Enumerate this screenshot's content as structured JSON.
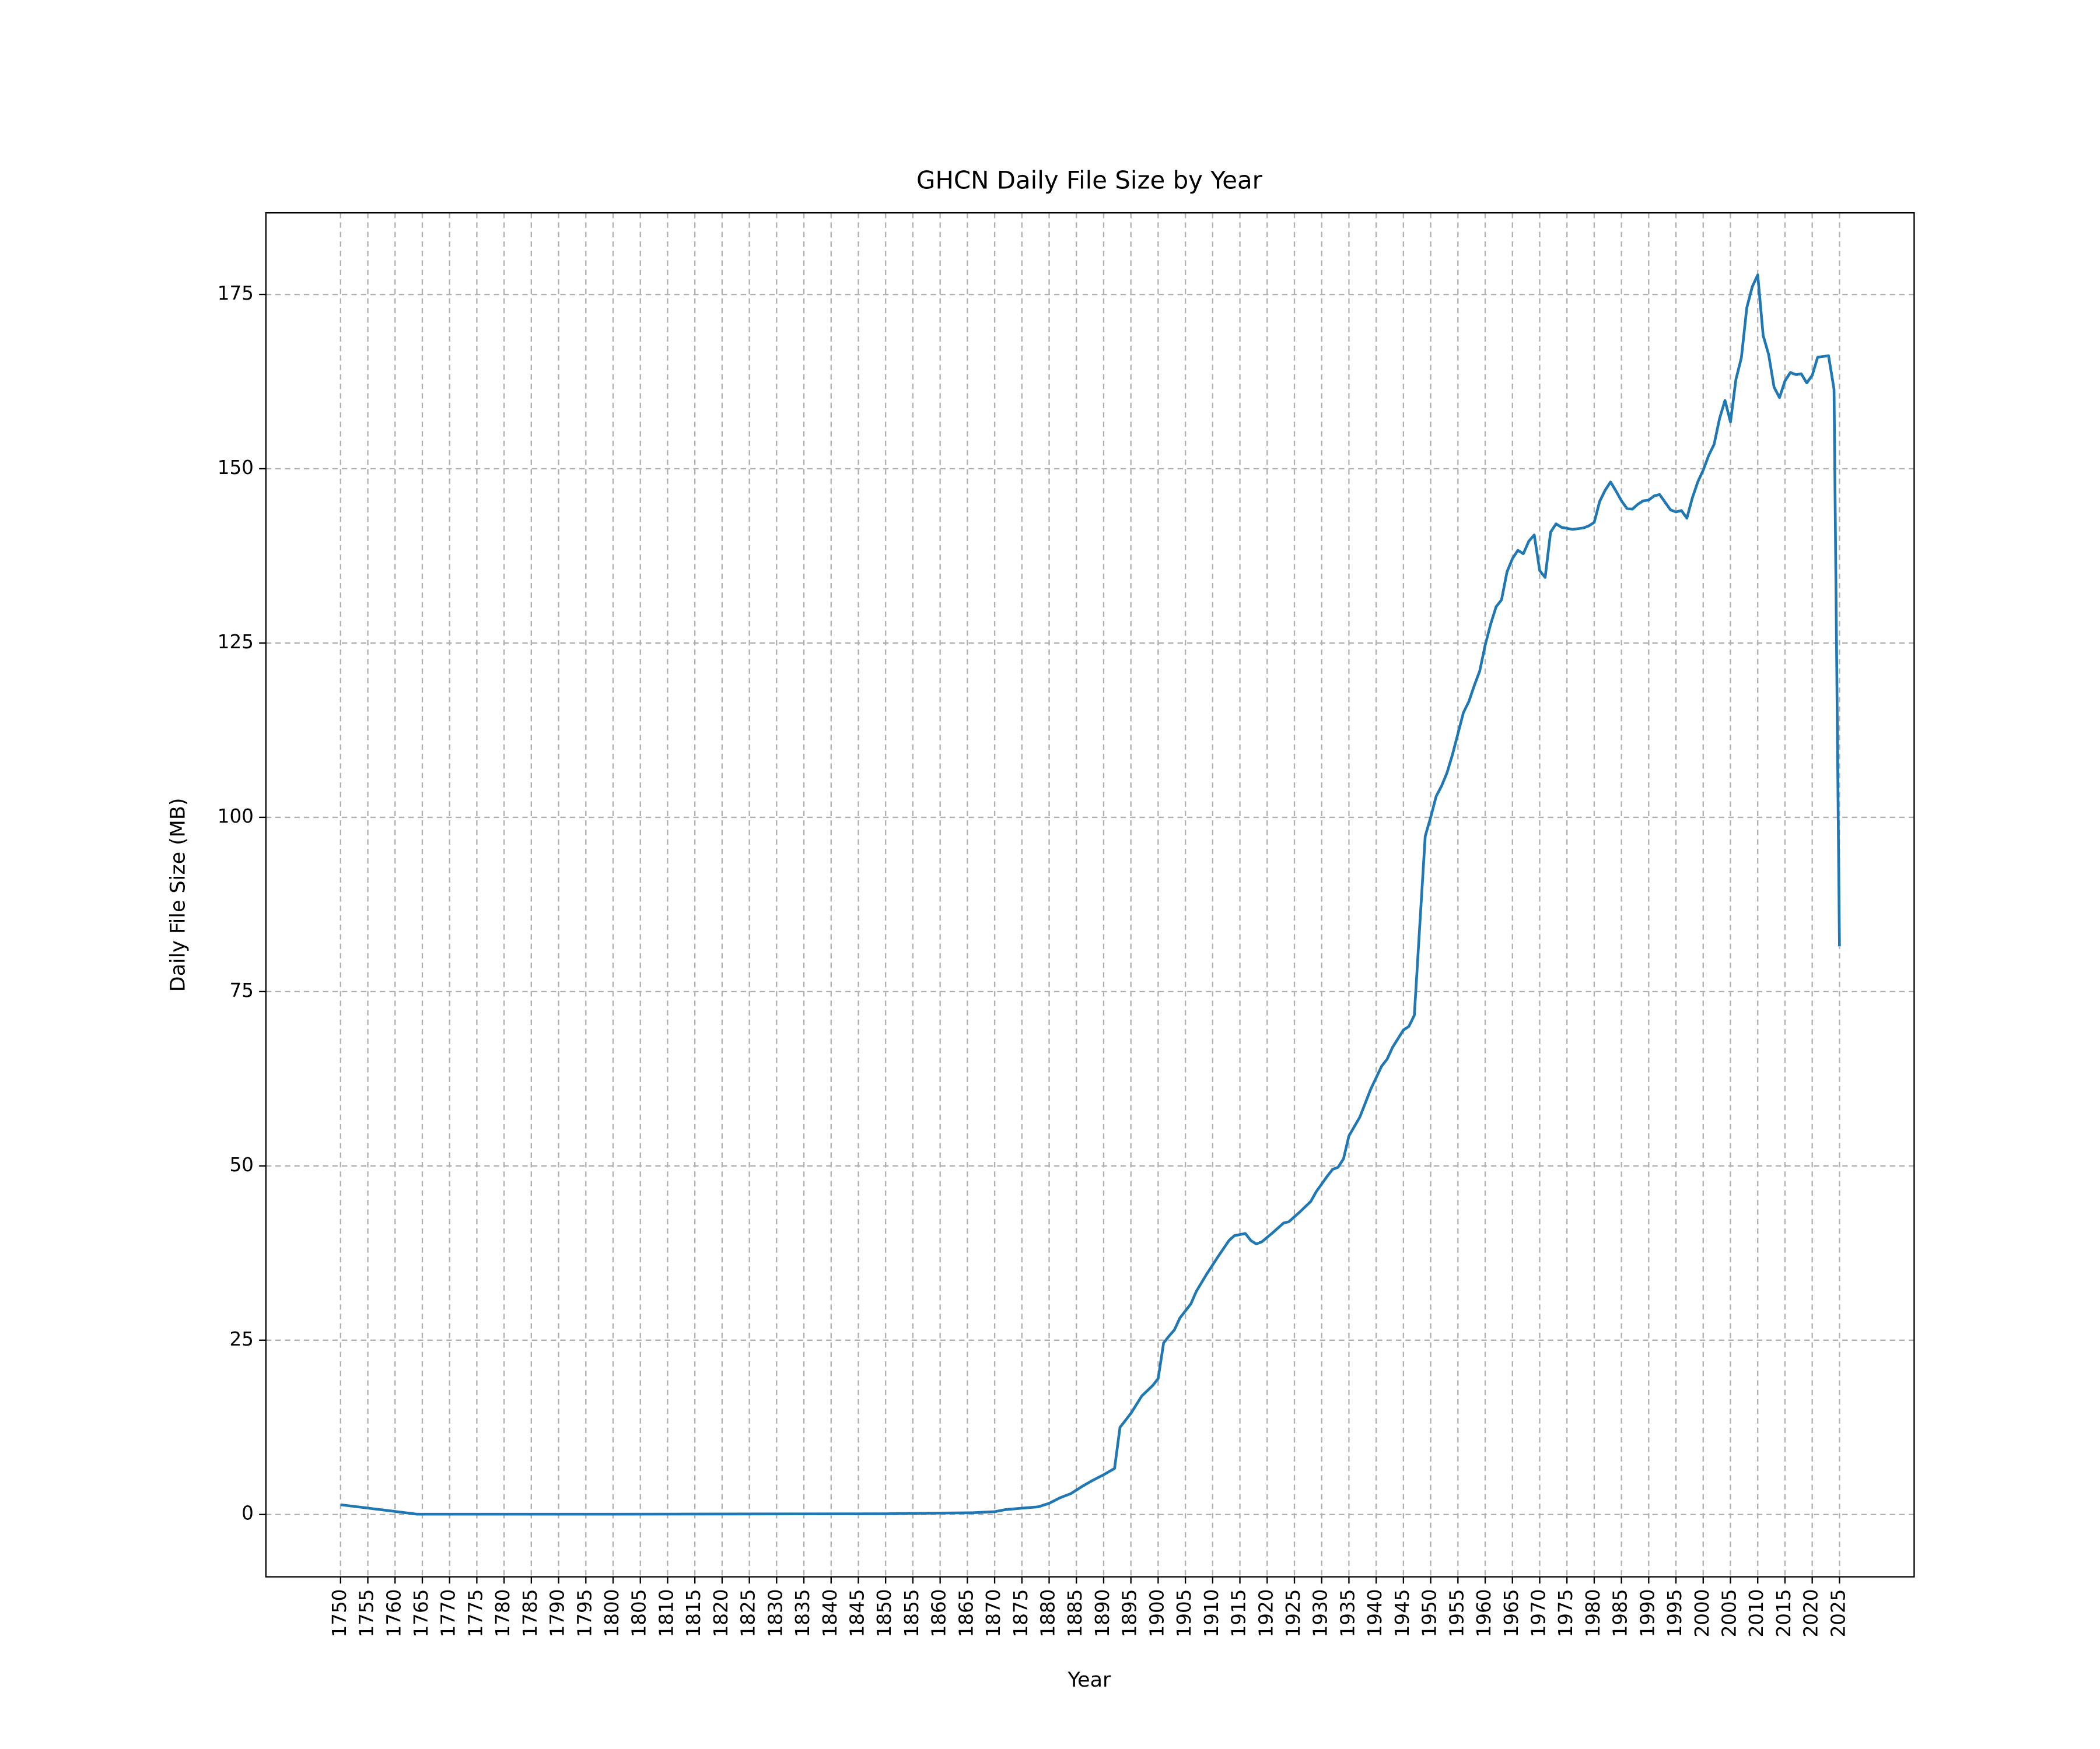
{
  "chart_data": {
    "type": "line",
    "title": "GHCN Daily File Size by Year",
    "xlabel": "Year",
    "ylabel": "Daily File Size (MB)",
    "x": [
      1750,
      1764,
      1800,
      1850,
      1860,
      1866,
      1870,
      1872,
      1875,
      1878,
      1880,
      1882,
      1884,
      1886,
      1888,
      1890,
      1892,
      1893,
      1895,
      1897,
      1899,
      1900,
      1901,
      1902,
      1903,
      1904,
      1906,
      1907,
      1909,
      1911,
      1913,
      1914,
      1916,
      1917,
      1918,
      1919,
      1921,
      1923,
      1924,
      1926,
      1928,
      1929,
      1931,
      1932,
      1933,
      1934,
      1935,
      1937,
      1939,
      1941,
      1942,
      1943,
      1945,
      1946,
      1947,
      1948,
      1949,
      1950,
      1951,
      1952,
      1953,
      1954,
      1955,
      1956,
      1957,
      1958,
      1959,
      1960,
      1961,
      1962,
      1963,
      1964,
      1965,
      1966,
      1967,
      1968,
      1969,
      1970,
      1971,
      1972,
      1973,
      1974,
      1976,
      1978,
      1979,
      1980,
      1981,
      1982,
      1983,
      1984,
      1985,
      1986,
      1987,
      1988,
      1989,
      1990,
      1991,
      1992,
      1993,
      1994,
      1995,
      1996,
      1997,
      1998,
      1999,
      2000,
      2001,
      2002,
      2003,
      2004,
      2005,
      2006,
      2007,
      2008,
      2009,
      2010,
      2011,
      2012,
      2013,
      2014,
      2015,
      2016,
      2017,
      2018,
      2019,
      2020,
      2021,
      2022,
      2023,
      2024,
      2025
    ],
    "values": [
      1.4,
      0.05,
      0.05,
      0.1,
      0.2,
      0.25,
      0.4,
      0.7,
      0.9,
      1.1,
      1.6,
      2.4,
      3.0,
      4.0,
      4.9,
      5.7,
      6.6,
      12.5,
      14.5,
      17.0,
      18.5,
      19.5,
      24.6,
      25.6,
      26.5,
      28.2,
      30.2,
      32.0,
      34.6,
      37.0,
      39.3,
      40.0,
      40.3,
      39.3,
      38.8,
      39.1,
      40.4,
      41.8,
      42.0,
      43.4,
      44.9,
      46.3,
      48.5,
      49.5,
      49.8,
      51.0,
      54.3,
      57.0,
      61.0,
      64.3,
      65.3,
      67.0,
      69.5,
      70.0,
      71.6,
      84.5,
      97.3,
      100.0,
      103.0,
      104.5,
      106.4,
      109.0,
      112.0,
      115.0,
      116.6,
      118.9,
      121.0,
      124.7,
      127.7,
      130.2,
      131.2,
      135.2,
      137.1,
      138.3,
      137.8,
      139.6,
      140.5,
      135.4,
      134.4,
      140.9,
      142.1,
      141.6,
      141.3,
      141.5,
      141.8,
      142.3,
      145.3,
      146.9,
      148.1,
      146.8,
      145.4,
      144.3,
      144.2,
      144.9,
      145.4,
      145.5,
      146.1,
      146.3,
      145.2,
      144.1,
      143.8,
      144.0,
      142.9,
      145.8,
      148.1,
      149.8,
      151.9,
      153.5,
      157.2,
      159.8,
      156.7,
      162.8,
      165.9,
      173.1,
      176.1,
      177.8,
      169.1,
      166.4,
      161.7,
      160.2,
      162.6,
      163.8,
      163.5,
      163.6,
      162.3,
      163.4,
      166.0,
      166.1,
      166.2,
      161.4,
      81.5
    ],
    "color": "#1f77b4",
    "xlim": [
      1736.3,
      2038.7
    ],
    "ylim": [
      -8.94,
      186.7
    ],
    "xticks": [
      1750,
      1755,
      1760,
      1765,
      1770,
      1775,
      1780,
      1785,
      1790,
      1795,
      1800,
      1805,
      1810,
      1815,
      1820,
      1825,
      1830,
      1835,
      1840,
      1845,
      1850,
      1855,
      1860,
      1865,
      1870,
      1875,
      1880,
      1885,
      1890,
      1895,
      1900,
      1905,
      1910,
      1915,
      1920,
      1925,
      1930,
      1935,
      1940,
      1945,
      1950,
      1955,
      1960,
      1965,
      1970,
      1975,
      1980,
      1985,
      1990,
      1995,
      2000,
      2005,
      2010,
      2015,
      2020,
      2025
    ],
    "yticks": [
      0,
      25,
      50,
      75,
      100,
      125,
      150,
      175
    ],
    "grid": true
  }
}
